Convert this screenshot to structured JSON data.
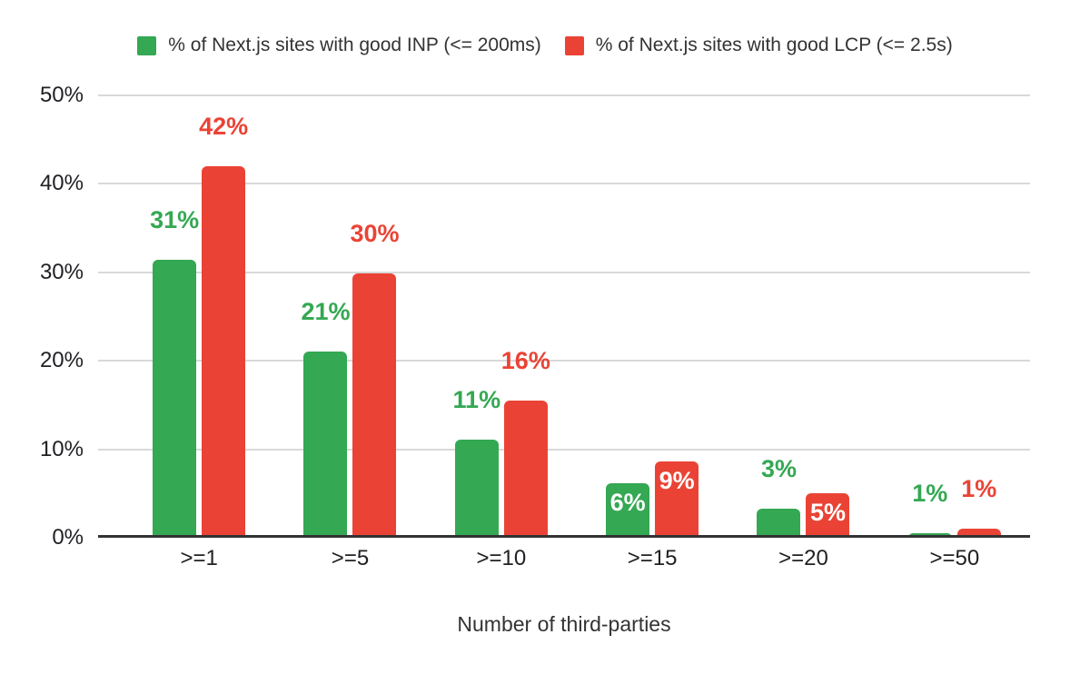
{
  "legend": {
    "items": [
      {
        "label": "% of Next.js sites with good INP (<= 200ms)",
        "color": "#34a853"
      },
      {
        "label": "% of Next.js sites with good LCP (<= 2.5s)",
        "color": "#ea4335"
      }
    ]
  },
  "chart_data": {
    "type": "bar",
    "title": "",
    "xlabel": "Number of third-parties",
    "ylabel": "",
    "ylim": [
      0,
      50
    ],
    "grid": true,
    "legend_position": "top",
    "background": "#ffffff",
    "gridline_color": "#d9d9d9",
    "baseline_color": "#333333",
    "yticks": [
      {
        "value": 0,
        "label": "0%"
      },
      {
        "value": 10,
        "label": "10%"
      },
      {
        "value": 20,
        "label": "20%"
      },
      {
        "value": 30,
        "label": "30%"
      },
      {
        "value": 40,
        "label": "40%"
      },
      {
        "value": 50,
        "label": "50%"
      }
    ],
    "categories": [
      ">=1",
      ">=5",
      ">=10",
      ">=15",
      ">=20",
      ">=50"
    ],
    "series": [
      {
        "name": "% of Next.js sites with good INP (<= 200ms)",
        "color": "#34a853",
        "values": [
          31.4,
          21.0,
          11.1,
          6.2,
          3.3,
          0.5
        ],
        "labels": [
          "31%",
          "21%",
          "11%",
          "6%",
          "3%",
          "1%"
        ],
        "label_placement": [
          "above",
          "above",
          "above",
          "inside",
          "above",
          "above"
        ]
      },
      {
        "name": "% of Next.js sites with good LCP (<= 2.5s)",
        "color": "#ea4335",
        "values": [
          42.0,
          29.9,
          15.5,
          8.6,
          5.0,
          1.0
        ],
        "labels": [
          "42%",
          "30%",
          "16%",
          "9%",
          "5%",
          "1%"
        ],
        "label_placement": [
          "above",
          "above",
          "above",
          "inside",
          "inside",
          "above"
        ]
      }
    ]
  }
}
